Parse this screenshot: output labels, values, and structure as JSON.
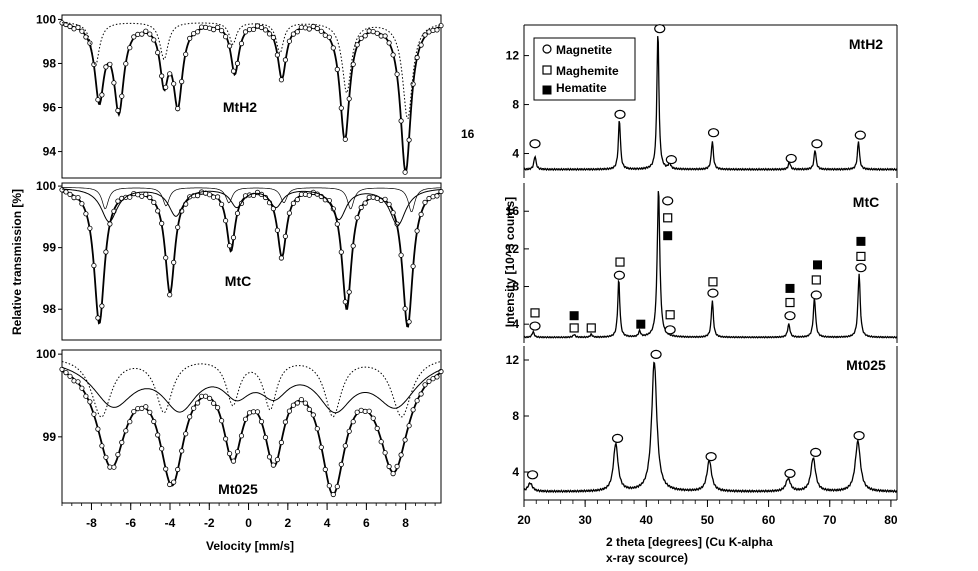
{
  "figure": {
    "stray_text": "16"
  },
  "chart_data": [
    {
      "id": "mossbauer",
      "type": "line",
      "title": "",
      "xlabel": "Velocity [mm/s]",
      "ylabel": "Relative transmission [%]",
      "xlim": [
        -9.5,
        9.8
      ],
      "xticks": [
        -8,
        -6,
        -4,
        -2,
        0,
        2,
        4,
        6,
        8
      ],
      "grid": false,
      "panels": [
        {
          "label": "MtH2",
          "ylim": [
            92.8,
            100.2
          ],
          "yticks": [
            94,
            96,
            98,
            100
          ],
          "baseline": 99.9,
          "series": [
            {
              "name": "fit-total",
              "style": "solid-with-circles",
              "peaks": [
                {
                  "v": -7.6,
                  "depth": 3.4,
                  "w": 0.28
                },
                {
                  "v": -6.6,
                  "depth": 3.9,
                  "w": 0.3
                },
                {
                  "v": -4.3,
                  "depth": 2.5,
                  "w": 0.25
                },
                {
                  "v": -3.6,
                  "depth": 3.6,
                  "w": 0.28
                },
                {
                  "v": -0.7,
                  "depth": 2.3,
                  "w": 0.25
                },
                {
                  "v": 1.7,
                  "depth": 2.5,
                  "w": 0.26
                },
                {
                  "v": 4.9,
                  "depth": 5.3,
                  "w": 0.3
                },
                {
                  "v": 8.0,
                  "depth": 6.8,
                  "w": 0.32
                }
              ]
            },
            {
              "name": "subspectrum-1",
              "style": "dotted",
              "peaks": [
                {
                  "v": -7.8,
                  "depth": 2.0,
                  "w": 0.25
                },
                {
                  "v": -4.3,
                  "depth": 1.7,
                  "w": 0.25
                },
                {
                  "v": -0.8,
                  "depth": 1.0,
                  "w": 0.22
                },
                {
                  "v": 1.6,
                  "depth": 1.4,
                  "w": 0.22
                },
                {
                  "v": 5.0,
                  "depth": 3.2,
                  "w": 0.28
                },
                {
                  "v": 8.1,
                  "depth": 4.4,
                  "w": 0.3
                }
              ]
            }
          ]
        },
        {
          "label": "MtC",
          "ylim": [
            97.5,
            100.05
          ],
          "yticks": [
            98,
            99,
            100
          ],
          "baseline": 99.98,
          "series": [
            {
              "name": "fit-total",
              "style": "solid-with-circles",
              "peaks": [
                {
                  "v": -7.6,
                  "depth": 2.2,
                  "w": 0.32
                },
                {
                  "v": -4.0,
                  "depth": 1.7,
                  "w": 0.3
                },
                {
                  "v": -0.9,
                  "depth": 1.0,
                  "w": 0.26
                },
                {
                  "v": 1.7,
                  "depth": 1.1,
                  "w": 0.28
                },
                {
                  "v": 5.0,
                  "depth": 1.95,
                  "w": 0.3
                },
                {
                  "v": 8.1,
                  "depth": 2.25,
                  "w": 0.32
                }
              ]
            },
            {
              "name": "subspectrum-1",
              "style": "solid",
              "peaks": [
                {
                  "v": -7.1,
                  "depth": 0.55,
                  "w": 0.5
                },
                {
                  "v": -3.7,
                  "depth": 0.45,
                  "w": 0.45
                },
                {
                  "v": -0.6,
                  "depth": 0.3,
                  "w": 0.4
                },
                {
                  "v": 1.4,
                  "depth": 0.3,
                  "w": 0.4
                },
                {
                  "v": 4.6,
                  "depth": 0.5,
                  "w": 0.45
                },
                {
                  "v": 7.6,
                  "depth": 0.6,
                  "w": 0.5
                }
              ]
            },
            {
              "name": "subspectrum-2",
              "style": "thin",
              "peaks": [
                {
                  "v": -7.3,
                  "depth": 0.35,
                  "w": 0.2
                },
                {
                  "v": -4.2,
                  "depth": 0.3,
                  "w": 0.2
                },
                {
                  "v": -1.0,
                  "depth": 0.25,
                  "w": 0.2
                },
                {
                  "v": 1.8,
                  "depth": 0.25,
                  "w": 0.2
                },
                {
                  "v": 5.2,
                  "depth": 0.35,
                  "w": 0.2
                },
                {
                  "v": 8.3,
                  "depth": 0.4,
                  "w": 0.2
                }
              ]
            }
          ]
        },
        {
          "label": "Mt025",
          "ylim": [
            98.2,
            100.05
          ],
          "yticks": [
            99,
            100
          ],
          "baseline": 99.98,
          "series": [
            {
              "name": "fit-total",
              "style": "solid-with-circles",
              "peaks": [
                {
                  "v": -7.0,
                  "depth": 1.25,
                  "w": 0.9
                },
                {
                  "v": -3.9,
                  "depth": 1.4,
                  "w": 0.75
                },
                {
                  "v": -0.8,
                  "depth": 1.05,
                  "w": 0.6
                },
                {
                  "v": 1.3,
                  "depth": 1.1,
                  "w": 0.6
                },
                {
                  "v": 4.3,
                  "depth": 1.5,
                  "w": 0.75
                },
                {
                  "v": 7.4,
                  "depth": 1.3,
                  "w": 0.9
                }
              ]
            },
            {
              "name": "subspectrum-1",
              "style": "solid",
              "peaks": [
                {
                  "v": -6.9,
                  "depth": 0.55,
                  "w": 1.3
                },
                {
                  "v": -3.5,
                  "depth": 0.55,
                  "w": 1.1
                },
                {
                  "v": -0.6,
                  "depth": 0.35,
                  "w": 0.9
                },
                {
                  "v": 1.3,
                  "depth": 0.35,
                  "w": 0.9
                },
                {
                  "v": 4.4,
                  "depth": 0.55,
                  "w": 1.1
                },
                {
                  "v": 7.5,
                  "depth": 0.55,
                  "w": 1.3
                }
              ]
            },
            {
              "name": "subspectrum-2",
              "style": "dotted",
              "peaks": [
                {
                  "v": -7.5,
                  "depth": 0.72,
                  "w": 0.6
                },
                {
                  "v": -4.3,
                  "depth": 0.65,
                  "w": 0.5
                },
                {
                  "v": -0.8,
                  "depth": 0.55,
                  "w": 0.4
                },
                {
                  "v": 1.1,
                  "depth": 0.6,
                  "w": 0.4
                },
                {
                  "v": 4.3,
                  "depth": 0.7,
                  "w": 0.5
                },
                {
                  "v": 7.8,
                  "depth": 0.72,
                  "w": 0.6
                }
              ]
            }
          ]
        }
      ]
    },
    {
      "id": "xrd",
      "type": "line",
      "title": "",
      "xlabel": "2 theta [degrees]  (Cu K-alpha x-ray scource)",
      "xlabel_lines": [
        "2 theta [degrees]  (Cu K-alpha",
        "x-ray scource)"
      ],
      "ylabel": "Intensity [10^3 counts]",
      "xlim": [
        20,
        81
      ],
      "xticks": [
        20,
        30,
        40,
        50,
        60,
        70,
        80
      ],
      "grid": false,
      "legend": {
        "placement": "top-left",
        "entries": [
          {
            "label": "Magnetite",
            "marker": "open-circle"
          },
          {
            "label": "Maghemite",
            "marker": "open-square"
          },
          {
            "label": "Hematite",
            "marker": "filled-square"
          }
        ]
      },
      "panels": [
        {
          "label": "MtH2",
          "ylim": [
            2,
            14.5
          ],
          "yticks": [
            4,
            8,
            12
          ],
          "background": 2.7,
          "peaks": [
            {
              "x": 21.8,
              "h": 3.8,
              "w": 0.2
            },
            {
              "x": 35.6,
              "h": 6.8,
              "w": 0.2
            },
            {
              "x": 41.9,
              "h": 14.0,
              "w": 0.2
            },
            {
              "x": 43.8,
              "h": 3.2,
              "w": 0.2
            },
            {
              "x": 50.8,
              "h": 5.0,
              "w": 0.2
            },
            {
              "x": 63.4,
              "h": 3.3,
              "w": 0.2
            },
            {
              "x": 67.6,
              "h": 4.3,
              "w": 0.2
            },
            {
              "x": 74.7,
              "h": 5.0,
              "w": 0.2
            }
          ],
          "markers": [
            {
              "x": 21.8,
              "y": 4.8,
              "phase": "Magnetite"
            },
            {
              "x": 35.7,
              "y": 7.2,
              "phase": "Magnetite"
            },
            {
              "x": 42.2,
              "y": 14.2,
              "phase": "Magnetite"
            },
            {
              "x": 44.1,
              "y": 3.5,
              "phase": "Magnetite"
            },
            {
              "x": 51.0,
              "y": 5.7,
              "phase": "Magnetite"
            },
            {
              "x": 63.7,
              "y": 3.6,
              "phase": "Magnetite"
            },
            {
              "x": 67.9,
              "y": 4.8,
              "phase": "Magnetite"
            },
            {
              "x": 75.0,
              "y": 5.5,
              "phase": "Magnetite"
            }
          ]
        },
        {
          "label": "MtC",
          "ylim": [
            2,
            19
          ],
          "yticks": [
            4,
            8,
            12,
            16
          ],
          "background": 2.6,
          "peaks": [
            {
              "x": 21.5,
              "h": 3.2,
              "w": 0.2
            },
            {
              "x": 28.2,
              "h": 2.9,
              "w": 0.2
            },
            {
              "x": 31.0,
              "h": 2.9,
              "w": 0.2
            },
            {
              "x": 35.5,
              "h": 8.8,
              "w": 0.2
            },
            {
              "x": 38.9,
              "h": 3.2,
              "w": 0.2
            },
            {
              "x": 42.0,
              "h": 18.5,
              "w": 0.25
            },
            {
              "x": 50.8,
              "h": 6.5,
              "w": 0.2
            },
            {
              "x": 63.3,
              "h": 4.0,
              "w": 0.22
            },
            {
              "x": 67.5,
              "h": 6.8,
              "w": 0.22
            },
            {
              "x": 74.8,
              "h": 9.4,
              "w": 0.22
            }
          ],
          "markers": [
            {
              "x": 21.8,
              "y": 3.8,
              "phase": "Magnetite"
            },
            {
              "x": 21.8,
              "y": 5.2,
              "phase": "Maghemite"
            },
            {
              "x": 28.2,
              "y": 3.6,
              "phase": "Maghemite"
            },
            {
              "x": 28.2,
              "y": 4.9,
              "phase": "Hematite"
            },
            {
              "x": 31.0,
              "y": 3.6,
              "phase": "Maghemite"
            },
            {
              "x": 35.6,
              "y": 9.2,
              "phase": "Magnetite"
            },
            {
              "x": 35.7,
              "y": 10.6,
              "phase": "Maghemite"
            },
            {
              "x": 39.1,
              "y": 4.0,
              "phase": "Hematite"
            },
            {
              "x": 43.5,
              "y": 17.1,
              "phase": "Magnetite"
            },
            {
              "x": 43.5,
              "y": 15.3,
              "phase": "Maghemite"
            },
            {
              "x": 43.5,
              "y": 13.4,
              "phase": "Hematite"
            },
            {
              "x": 43.9,
              "y": 5.0,
              "phase": "Maghemite"
            },
            {
              "x": 43.9,
              "y": 3.4,
              "phase": "Magnetite"
            },
            {
              "x": 50.9,
              "y": 7.3,
              "phase": "Magnetite"
            },
            {
              "x": 50.9,
              "y": 8.5,
              "phase": "Maghemite"
            },
            {
              "x": 63.5,
              "y": 4.9,
              "phase": "Magnetite"
            },
            {
              "x": 63.5,
              "y": 6.3,
              "phase": "Maghemite"
            },
            {
              "x": 63.5,
              "y": 7.8,
              "phase": "Hematite"
            },
            {
              "x": 67.8,
              "y": 7.1,
              "phase": "Magnetite"
            },
            {
              "x": 67.8,
              "y": 8.7,
              "phase": "Maghemite"
            },
            {
              "x": 68.0,
              "y": 10.3,
              "phase": "Hematite"
            },
            {
              "x": 75.1,
              "y": 10.0,
              "phase": "Magnetite"
            },
            {
              "x": 75.1,
              "y": 11.2,
              "phase": "Maghemite"
            },
            {
              "x": 75.1,
              "y": 12.8,
              "phase": "Hematite"
            }
          ]
        },
        {
          "label": "Mt025",
          "ylim": [
            2,
            13
          ],
          "yticks": [
            4,
            8,
            12
          ],
          "background": 2.6,
          "peaks": [
            {
              "x": 21.0,
              "h": 3.2,
              "w": 0.45
            },
            {
              "x": 35.0,
              "h": 6.0,
              "w": 0.45
            },
            {
              "x": 41.3,
              "h": 11.9,
              "w": 0.5
            },
            {
              "x": 50.3,
              "h": 4.8,
              "w": 0.45
            },
            {
              "x": 63.2,
              "h": 3.5,
              "w": 0.45
            },
            {
              "x": 67.3,
              "h": 5.0,
              "w": 0.45
            },
            {
              "x": 74.6,
              "h": 6.2,
              "w": 0.5
            }
          ],
          "markers": [
            {
              "x": 21.4,
              "y": 3.8,
              "phase": "Magnetite"
            },
            {
              "x": 35.3,
              "y": 6.4,
              "phase": "Magnetite"
            },
            {
              "x": 41.6,
              "y": 12.4,
              "phase": "Magnetite"
            },
            {
              "x": 50.6,
              "y": 5.1,
              "phase": "Magnetite"
            },
            {
              "x": 63.5,
              "y": 3.9,
              "phase": "Magnetite"
            },
            {
              "x": 67.7,
              "y": 5.4,
              "phase": "Magnetite"
            },
            {
              "x": 74.8,
              "y": 6.6,
              "phase": "Magnetite"
            }
          ]
        }
      ]
    }
  ]
}
